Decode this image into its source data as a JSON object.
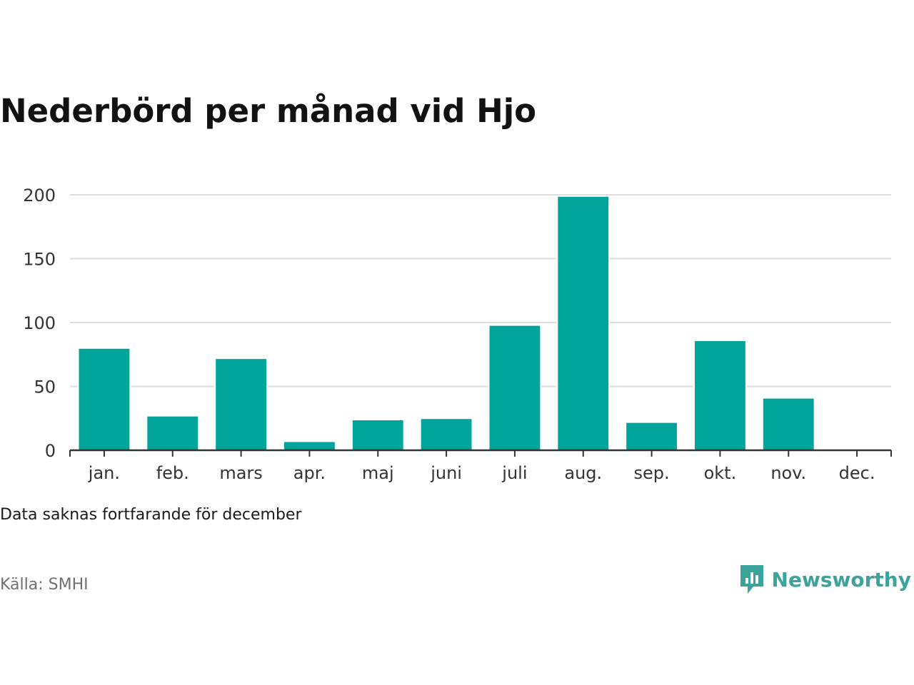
{
  "title": "Nederbörd per månad vid Hjo",
  "note": "Data saknas fortfarande för december",
  "source": "Källa: SMHI",
  "brand": {
    "name": "Newsworthy",
    "icon": "newsworthy-logo-icon",
    "color": "#3aa39b"
  },
  "colors": {
    "bar": "#00a49b",
    "grid": "#dcdcdc",
    "axis": "#333333"
  },
  "chart_data": {
    "type": "bar",
    "categories": [
      "jan.",
      "feb.",
      "mars",
      "apr.",
      "maj",
      "juni",
      "juli",
      "aug.",
      "sep.",
      "okt.",
      "nov.",
      "dec."
    ],
    "values": [
      80,
      27,
      72,
      7,
      24,
      25,
      98,
      199,
      22,
      86,
      41,
      null
    ],
    "yticks": [
      0,
      50,
      100,
      150,
      200
    ],
    "ylim": [
      0,
      200
    ],
    "grid": true,
    "legend": "none"
  }
}
